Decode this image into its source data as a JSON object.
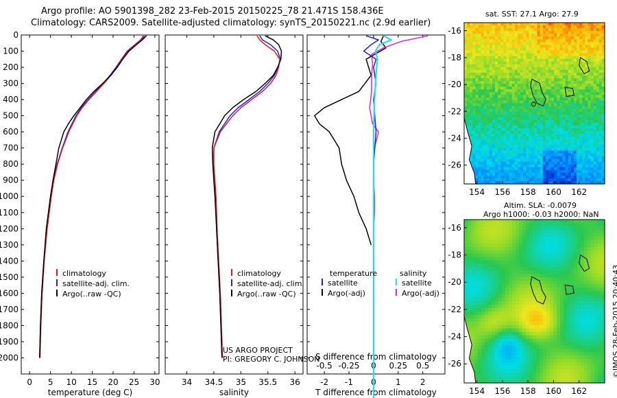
{
  "header": {
    "line1": "Argo profile: AO 5901398_282 23-Feb-2015 20150225_78 21.471S 158.436E",
    "line2": "Climatology: CARS2009. Satellite-adjusted climatology: synTS_20150221.nc (2.9d earlier)"
  },
  "colors": {
    "climatology": "#e8141c",
    "satellite": "#1c1ce8",
    "argo": "#000000",
    "salinity_satellite": "#22e0e8",
    "salinity_argo": "#e020e0"
  },
  "footer": {
    "project": "US ARGO PROJECT",
    "pi": "PI: GREGORY C. JOHNSON",
    "credit": "©IMOS 28-Feb-2015 20:40:43"
  },
  "chart_data": [
    {
      "type": "line",
      "xlabel": "temperature (deg C)",
      "ylabel": "",
      "xlim": [
        -2,
        31
      ],
      "ylim": [
        2100,
        0
      ],
      "xticks": [
        "0",
        "5",
        "10",
        "15",
        "20",
        "25",
        "30"
      ],
      "yticks": [
        "0",
        "100",
        "200",
        "300",
        "400",
        "500",
        "600",
        "700",
        "800",
        "900",
        "1000",
        "1100",
        "1200",
        "1300",
        "1400",
        "1500",
        "1600",
        "1700",
        "1800",
        "1900",
        "2000"
      ],
      "legend": [
        "climatology",
        "satellite-adj. clim.",
        "Argo(..raw -QC)"
      ],
      "series": [
        {
          "name": "climatology",
          "depth": [
            5,
            30,
            60,
            100,
            150,
            200,
            250,
            300,
            350,
            400,
            450,
            500,
            600,
            700,
            800,
            900,
            1000,
            1200,
            1400,
            1600,
            1800,
            2000
          ],
          "values": [
            27.6,
            26.8,
            25.3,
            23.6,
            22.1,
            20.9,
            19.5,
            17.8,
            16.0,
            14.2,
            12.6,
            11.3,
            9.4,
            7.9,
            6.7,
            5.8,
            5.2,
            4.2,
            3.5,
            3.0,
            2.7,
            2.5
          ]
        },
        {
          "name": "satellite-adj. clim.",
          "depth": [
            5,
            30,
            60,
            100,
            150,
            200,
            250,
            300,
            350,
            400,
            450,
            500,
            600,
            700,
            800,
            900,
            1000,
            1200,
            1400,
            1600,
            1800,
            2000
          ],
          "values": [
            27.3,
            26.6,
            25.2,
            23.4,
            22.0,
            20.7,
            19.3,
            17.6,
            15.8,
            14.0,
            12.4,
            11.1,
            9.2,
            7.8,
            6.6,
            5.7,
            5.1,
            4.1,
            3.4,
            2.9,
            2.6,
            2.4
          ]
        },
        {
          "name": "Argo(..raw -QC)",
          "depth": [
            5,
            30,
            60,
            100,
            150,
            200,
            250,
            300,
            350,
            400,
            450,
            500,
            550,
            600,
            700,
            800,
            900,
            1000,
            1200,
            1400,
            1600,
            1800,
            2000
          ],
          "values": [
            28.0,
            27.0,
            25.6,
            23.8,
            22.3,
            21.0,
            19.4,
            17.5,
            15.4,
            13.6,
            12.1,
            10.6,
            9.3,
            8.2,
            7.0,
            6.3,
            5.6,
            5.0,
            4.0,
            3.4,
            2.9,
            2.6,
            2.4
          ]
        }
      ]
    },
    {
      "type": "line",
      "xlabel": "salinity",
      "xlim": [
        33.6,
        36.15
      ],
      "ylim": [
        2100,
        0
      ],
      "xticks": [
        "34",
        "34.5",
        "35",
        "35.5",
        "36"
      ],
      "legend": [
        "climatology",
        "satellite-adj. clim.",
        "Argo(..raw -QC)"
      ],
      "series": [
        {
          "name": "climatology",
          "depth": [
            5,
            30,
            60,
            100,
            150,
            200,
            250,
            300,
            350,
            400,
            450,
            500,
            600,
            700,
            800,
            900,
            1000,
            1200,
            1400,
            1600,
            1800,
            2000
          ],
          "values": [
            35.3,
            35.35,
            35.45,
            35.62,
            35.72,
            35.7,
            35.65,
            35.55,
            35.4,
            35.2,
            35.0,
            34.85,
            34.62,
            34.5,
            34.5,
            34.52,
            34.54,
            34.56,
            34.59,
            34.62,
            34.64,
            34.66
          ]
        },
        {
          "name": "satellite-adj. clim.",
          "depth": [
            5,
            30,
            60,
            100,
            150,
            200,
            250,
            300,
            350,
            400,
            450,
            500,
            600,
            700,
            800,
            900,
            1000,
            1200,
            1400,
            1600,
            1800,
            2000
          ],
          "values": [
            35.35,
            35.4,
            35.55,
            35.68,
            35.73,
            35.69,
            35.62,
            35.5,
            35.35,
            35.15,
            34.95,
            34.8,
            34.6,
            34.5,
            34.49,
            34.51,
            34.53,
            34.55,
            34.58,
            34.61,
            34.63,
            34.65
          ]
        },
        {
          "name": "Argo(..raw -QC)",
          "depth": [
            5,
            30,
            60,
            100,
            150,
            200,
            250,
            300,
            350,
            400,
            450,
            500,
            600,
            700,
            800,
            900,
            1000,
            1200,
            1400,
            1600,
            1800,
            2000
          ],
          "values": [
            35.45,
            35.6,
            35.7,
            35.75,
            35.74,
            35.68,
            35.6,
            35.45,
            35.28,
            35.05,
            34.85,
            34.7,
            34.52,
            34.47,
            34.48,
            34.5,
            34.52,
            34.55,
            34.58,
            34.61,
            34.63,
            34.65
          ]
        }
      ]
    },
    {
      "type": "line",
      "xlabel": "T difference from climatology",
      "xlabel2": "S difference from climatology",
      "xlim": [
        -2.7,
        2.9
      ],
      "ylim": [
        2100,
        0
      ],
      "xticks": [
        "-2",
        "-1",
        "0",
        "1",
        "2"
      ],
      "xticks2": [
        "-0.5",
        "-0.25",
        "0",
        "0.25",
        "0.5"
      ],
      "legend_titles": [
        "temperature",
        "salinity"
      ],
      "legend": [
        "satellite",
        "Argo(-adj)",
        "satellite",
        "Argo(-adj)"
      ],
      "series": [
        {
          "name": "satellite",
          "quantity": "temperature",
          "depth": [
            5,
            30,
            60,
            100,
            150,
            200,
            300,
            400,
            600,
            800,
            1000,
            1500,
            2000,
            2250
          ],
          "values": [
            -0.3,
            0.2,
            -0.1,
            -0.4,
            0.1,
            0.0,
            0.1,
            0.0,
            0.1,
            0.0,
            0.0,
            0.0,
            0.0,
            0.0
          ]
        },
        {
          "name": "Argo(-adj)",
          "quantity": "temperature",
          "depth": [
            5,
            40,
            80,
            150,
            250,
            350,
            400,
            450,
            500,
            550,
            600,
            650,
            700,
            800,
            900,
            1000,
            1100,
            1200,
            1300
          ],
          "values": [
            0.4,
            0.3,
            0.5,
            -0.3,
            -0.1,
            -0.6,
            -1.3,
            -2.0,
            -2.4,
            -2.2,
            -1.8,
            -1.6,
            -1.4,
            -1.3,
            -1.1,
            -0.8,
            -0.6,
            -0.3,
            -0.1
          ]
        },
        {
          "name": "satellite",
          "quantity": "salinity",
          "depth": [
            5,
            30,
            60,
            100,
            150,
            200,
            300,
            400,
            600,
            800,
            1000,
            1500,
            2000,
            2250
          ],
          "values": [
            0.1,
            0.18,
            0.06,
            0.02,
            0.04,
            0.03,
            0.02,
            0.01,
            0.0,
            0.0,
            0.0,
            0.0,
            0.0,
            0.0
          ]
        },
        {
          "name": "Argo(-adj)",
          "quantity": "salinity",
          "depth": [
            5,
            40,
            80,
            120,
            180,
            250,
            350,
            450,
            550,
            600,
            650,
            700,
            800,
            900,
            1000,
            1100,
            1200,
            1300
          ],
          "values": [
            0.55,
            0.28,
            0.1,
            -0.02,
            -0.01,
            -0.02,
            -0.02,
            -0.04,
            -0.01,
            0.05,
            0.03,
            0.01,
            0.0,
            0.0,
            0.01,
            0.01,
            0.0,
            0.0
          ]
        }
      ]
    }
  ],
  "maps": [
    {
      "title": "sat. SST: 27.1 Argo: 27.9",
      "xticks": [
        "154",
        "156",
        "158",
        "160",
        "162"
      ],
      "yticks": [
        "-16",
        "-18",
        "-20",
        "-22",
        "-24",
        "-26"
      ],
      "argo_position": {
        "lon": 158.436,
        "lat": -21.471
      }
    },
    {
      "title_line1": "Altim. SLA: -0.0079",
      "title_line2": "Argo h1000: -0.03 h2000: NaN",
      "xticks": [
        "154",
        "156",
        "158",
        "160",
        "162"
      ],
      "yticks": [
        "-16",
        "-18",
        "-20",
        "-22",
        "-24",
        "-26"
      ]
    }
  ]
}
